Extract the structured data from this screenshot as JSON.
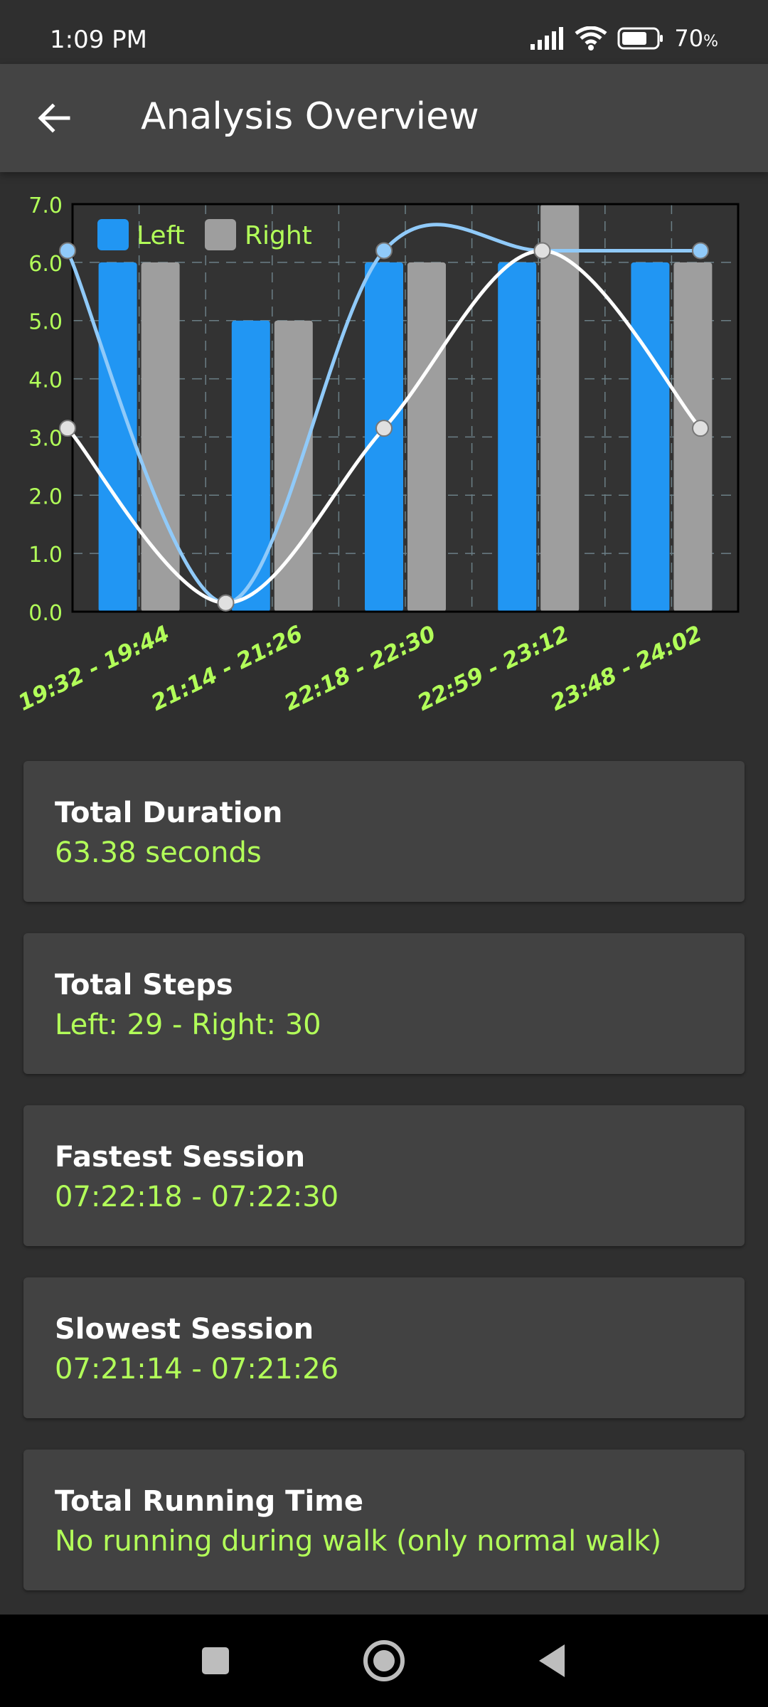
{
  "status": {
    "time": "1:09 PM",
    "battery": "70",
    "battery_unit": "%"
  },
  "appbar": {
    "title": "Analysis Overview"
  },
  "chart_data": {
    "type": "bar",
    "categories": [
      "19:32 - 19:44",
      "21:14 - 21:26",
      "22:18 - 22:30",
      "22:59 - 23:12",
      "23:48 - 24:02"
    ],
    "series": [
      {
        "name": "Left",
        "values": [
          6,
          5,
          6,
          6,
          6
        ]
      },
      {
        "name": "Right",
        "values": [
          6,
          5,
          6,
          7,
          6
        ]
      }
    ],
    "lines": [
      {
        "series": "Left",
        "values": [
          6.2,
          0.15,
          6.2,
          6.2,
          6.2
        ]
      },
      {
        "series": "Right",
        "values": [
          3.15,
          0.15,
          3.15,
          6.2,
          3.15
        ]
      }
    ],
    "ylim": [
      0,
      7
    ],
    "yticks": [
      "0.0",
      "1.0",
      "2.0",
      "3.0",
      "4.0",
      "5.0",
      "6.0",
      "7.0"
    ],
    "grid": true,
    "legend": "top-left",
    "colors": {
      "left": "#2196f3",
      "right": "#9e9e9e",
      "left_line": "#90caf9",
      "right_line": "#ffffff",
      "axis_text": "#b2ff59"
    }
  },
  "cards": [
    {
      "title": "Total Duration",
      "value": "63.38 seconds"
    },
    {
      "title": "Total Steps",
      "value": "Left: 29 - Right: 30"
    },
    {
      "title": "Fastest Session",
      "value": "07:22:18 - 07:22:30"
    },
    {
      "title": "Slowest Session",
      "value": "07:21:14 - 07:21:26"
    },
    {
      "title": "Total Running Time",
      "value": "No running during walk (only normal walk)"
    }
  ]
}
